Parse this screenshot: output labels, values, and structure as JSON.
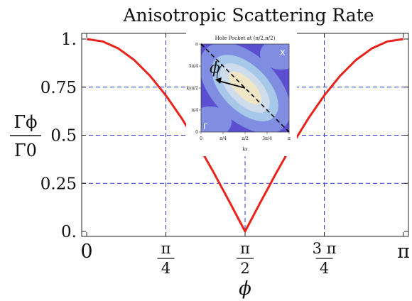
{
  "chart_data": {
    "type": "line",
    "title": "Anisotropic Scattering Rate",
    "xlabel": "ϕ",
    "ylabel": {
      "numerator": "Γϕ",
      "denominator": "Γ0"
    },
    "xlim": [
      0,
      3.14159
    ],
    "ylim": [
      0,
      1
    ],
    "grid": true,
    "grid_style": "dashed blue",
    "x_ticks": [
      {
        "value": 0,
        "label": "0"
      },
      {
        "value": 0.7854,
        "num": "π",
        "den": "4"
      },
      {
        "value": 1.5708,
        "num": "π",
        "den": "2"
      },
      {
        "value": 2.3562,
        "num": "3 π",
        "den": "4"
      },
      {
        "value": 3.14159,
        "label": "π"
      }
    ],
    "y_ticks": [
      {
        "value": 0,
        "label": "0."
      },
      {
        "value": 0.25,
        "label": "0.25"
      },
      {
        "value": 0.5,
        "label": "0.5"
      },
      {
        "value": 0.75,
        "label": "0.75"
      },
      {
        "value": 1,
        "label": "1."
      }
    ],
    "series": [
      {
        "color": "#e8231c",
        "x": [
          0,
          0.1571,
          0.3142,
          0.4712,
          0.6283,
          0.7854,
          0.9425,
          1.0996,
          1.2566,
          1.4137,
          1.5708,
          1.7279,
          1.885,
          2.042,
          2.1991,
          2.3562,
          2.5133,
          2.6704,
          2.8274,
          2.9845,
          3.1416
        ],
        "y": [
          1.0,
          0.988,
          0.951,
          0.891,
          0.809,
          0.707,
          0.588,
          0.454,
          0.309,
          0.156,
          0.0,
          0.156,
          0.309,
          0.454,
          0.588,
          0.707,
          0.809,
          0.891,
          0.951,
          0.988,
          1.0
        ]
      }
    ]
  },
  "inset": {
    "title": "Hole Pocket at (π/2,π/2)",
    "x_label": "kx",
    "y_label": "ky",
    "x_ticks": [
      "0",
      "π/4",
      "π/2",
      "3π/4",
      "π"
    ],
    "y_ticks": [
      "0",
      "π/4",
      "π/2",
      "3π/4",
      "π"
    ],
    "corner_X": "X",
    "corner_Gamma": "Γ",
    "angle_label": "ϕ",
    "colors": {
      "outer": "#5b4fd0",
      "mid": "#7f8ee0",
      "inner": "#a8c8ea",
      "core": "#efe6c6"
    }
  }
}
